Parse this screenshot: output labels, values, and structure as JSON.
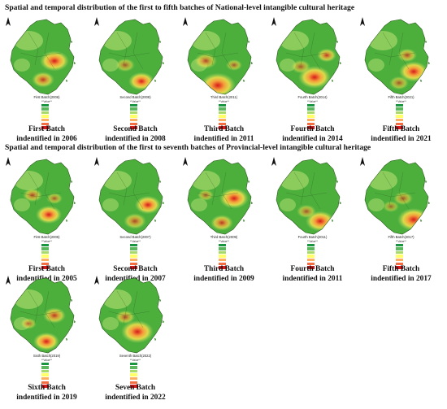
{
  "national": {
    "heading": "Spatial and temporal distribution of the first to fifth batches of National-level intangible cultural heritage",
    "panels": [
      {
        "map_title": "First Batch(2006)",
        "caption_line1": "First Batch",
        "caption_line2": "indentified in 2006"
      },
      {
        "map_title": "Second Batch(2008)",
        "caption_line1": "Second Batch",
        "caption_line2": "indentified in 2008"
      },
      {
        "map_title": "Third Batch(2011)",
        "caption_line1": "Third Batch",
        "caption_line2": "indentified in 2011"
      },
      {
        "map_title": "Fourth Batch(2014)",
        "caption_line1": "Fourth Batch",
        "caption_line2": "indentified in 2014"
      },
      {
        "map_title": "Fifth Batch(2021)",
        "caption_line1": "Fifth Batch",
        "caption_line2": "indentified in 2021"
      }
    ]
  },
  "provincial": {
    "heading": "Spatial and temporal distribution of the first to seventh batches of Provincial-level intangible cultural heritage",
    "panels": [
      {
        "map_title": "First Batch(2005)",
        "caption_line1": "First Batch",
        "caption_line2": "indentified in 2005"
      },
      {
        "map_title": "Second Batch(2007)",
        "caption_line1": "Second Batch",
        "caption_line2": "indentified in 2007"
      },
      {
        "map_title": "Third Batch(2009)",
        "caption_line1": "Third Batch",
        "caption_line2": "indentified in 2009"
      },
      {
        "map_title": "Fourth Batch(2011)",
        "caption_line1": "Fourth Batch",
        "caption_line2": "indentified in 2011"
      },
      {
        "map_title": "Fifth Batch(2017)",
        "caption_line1": "Fifth Batch",
        "caption_line2": "indentified in 2017"
      },
      {
        "map_title": "Sixth Batch(2019)",
        "caption_line1": "Sixth Batch",
        "caption_line2": "indentified in 2019"
      },
      {
        "map_title": "Seventh Batch(2022)",
        "caption_line1": "Seven Batch",
        "caption_line2": "indentified in 2022"
      }
    ]
  },
  "legend": {
    "header": "**Value**",
    "colors": [
      "#1a9641",
      "#5cb85c",
      "#a6d96a",
      "#ffff66",
      "#fdae61",
      "#f46d43",
      "#d7191c"
    ]
  },
  "map_colors": {
    "base": "#4caf3c",
    "light": "#a6d96a",
    "mid": "#ffe44d",
    "orange": "#f59a3a",
    "red": "#d7191c"
  }
}
